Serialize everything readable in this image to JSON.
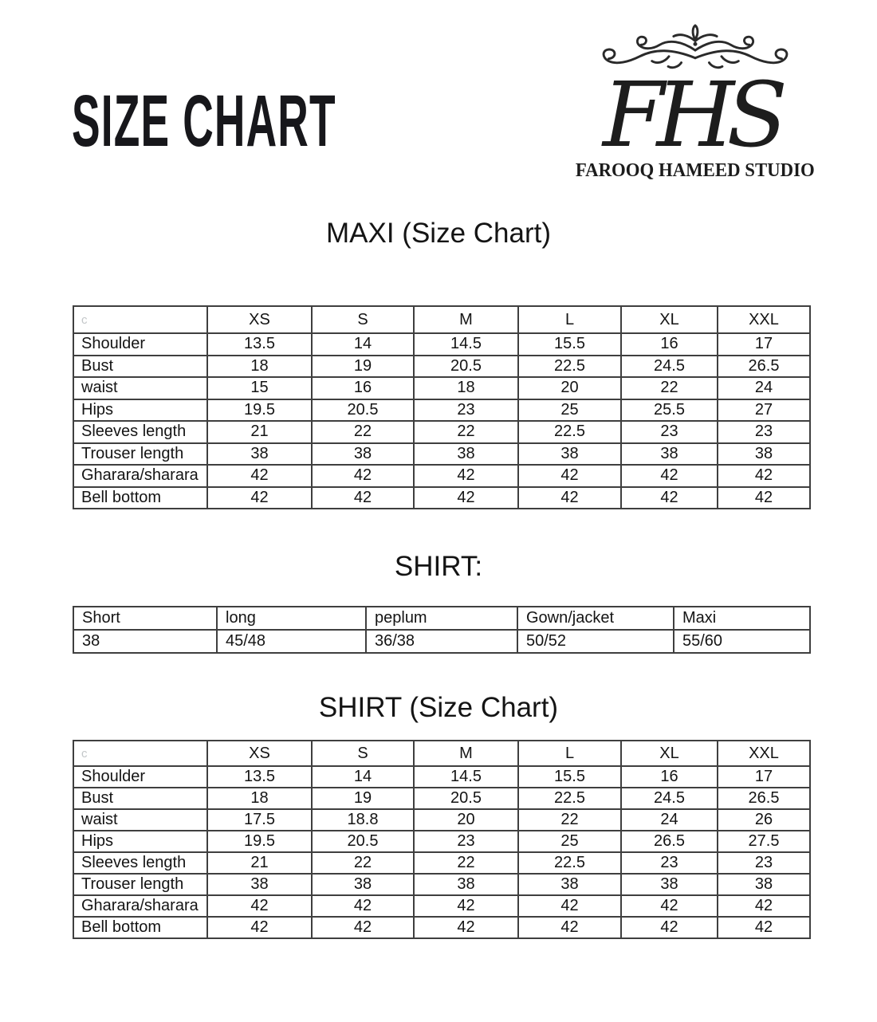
{
  "page": {
    "title": "SIZE CHART"
  },
  "logo": {
    "monogram": "FHS",
    "studio_name": "FAROOQ HAMEED STUDIO"
  },
  "sections": {
    "maxi": {
      "heading": "MAXI (Size Chart)",
      "table": {
        "header": [
          "c",
          "XS",
          "S",
          "M",
          "L",
          "XL",
          "XXL"
        ],
        "rows": [
          {
            "label": "Shoulder",
            "values": [
              "13.5",
              "14",
              "14.5",
              "15.5",
              "16",
              "17"
            ]
          },
          {
            "label": "Bust",
            "values": [
              "18",
              "19",
              "20.5",
              "22.5",
              "24.5",
              "26.5"
            ]
          },
          {
            "label": "waist",
            "values": [
              "15",
              "16",
              "18",
              "20",
              "22",
              "24"
            ]
          },
          {
            "label": "Hips",
            "values": [
              "19.5",
              "20.5",
              "23",
              "25",
              "25.5",
              "27"
            ]
          },
          {
            "label": "Sleeves length",
            "values": [
              "21",
              "22",
              "22",
              "22.5",
              "23",
              "23"
            ]
          },
          {
            "label": "Trouser length",
            "values": [
              "38",
              "38",
              "38",
              "38",
              "38",
              "38"
            ]
          },
          {
            "label": "Gharara/sharara",
            "values": [
              "42",
              "42",
              "42",
              "42",
              "42",
              "42"
            ]
          },
          {
            "label": "Bell bottom",
            "values": [
              "42",
              "42",
              "42",
              "42",
              "42",
              "42"
            ]
          }
        ]
      }
    },
    "shirt_lengths": {
      "heading": "SHIRT:",
      "table": {
        "header": [
          "Short",
          "long",
          "peplum",
          "Gown/jacket",
          "Maxi"
        ],
        "rows": [
          {
            "values": [
              "38",
              "45/48",
              "36/38",
              "50/52",
              "55/60"
            ]
          }
        ]
      }
    },
    "shirt": {
      "heading": "SHIRT (Size Chart)",
      "table": {
        "header": [
          "c",
          "XS",
          "S",
          "M",
          "L",
          "XL",
          "XXL"
        ],
        "rows": [
          {
            "label": "Shoulder",
            "values": [
              "13.5",
              "14",
              "14.5",
              "15.5",
              "16",
              "17"
            ]
          },
          {
            "label": "Bust",
            "values": [
              "18",
              "19",
              "20.5",
              "22.5",
              "24.5",
              "26.5"
            ]
          },
          {
            "label": "waist",
            "values": [
              "17.5",
              "18.8",
              "20",
              "22",
              "24",
              "26"
            ]
          },
          {
            "label": "Hips",
            "values": [
              "19.5",
              "20.5",
              "23",
              "25",
              "26.5",
              "27.5"
            ]
          },
          {
            "label": "Sleeves length",
            "values": [
              "21",
              "22",
              "22",
              "22.5",
              "23",
              "23"
            ]
          },
          {
            "label": "Trouser length",
            "values": [
              "38",
              "38",
              "38",
              "38",
              "38",
              "38"
            ]
          },
          {
            "label": "Gharara/sharara",
            "values": [
              "42",
              "42",
              "42",
              "42",
              "42",
              "42"
            ]
          },
          {
            "label": "Bell bottom",
            "values": [
              "42",
              "42",
              "42",
              "42",
              "42",
              "42"
            ]
          }
        ]
      }
    }
  }
}
